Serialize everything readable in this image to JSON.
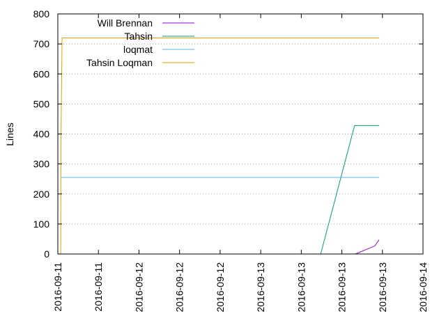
{
  "chart_data": {
    "type": "line",
    "title": "",
    "xlabel": "",
    "ylabel": "Lines",
    "ylim": [
      0,
      800
    ],
    "yticks": [
      0,
      100,
      200,
      300,
      400,
      500,
      600,
      700,
      800
    ],
    "xlim": [
      "2016-09-11T00:00",
      "2016-09-14T00:00"
    ],
    "xticks": [
      "2016-09-11",
      "2016-09-11",
      "2016-09-12",
      "2016-09-12",
      "2016-09-12",
      "2016-09-13",
      "2016-09-13",
      "2016-09-13",
      "2016-09-13",
      "2016-09-14"
    ],
    "grid": "horizontal dotted",
    "legend_position": "top-left",
    "series": [
      {
        "name": "Will Brennan",
        "color": "#9400d3",
        "points": [
          [
            "2016-09-12T02:00",
            0
          ],
          [
            "2016-09-13T10:40",
            0
          ],
          [
            "2016-09-13T14:30",
            27
          ],
          [
            "2016-09-13T15:20",
            47
          ]
        ]
      },
      {
        "name": "Tahsin",
        "color": "#009e73",
        "points": [
          [
            "2016-09-12T02:00",
            0
          ],
          [
            "2016-09-13T03:50",
            0
          ],
          [
            "2016-09-13T10:30",
            428
          ],
          [
            "2016-09-13T15:20",
            428
          ]
        ]
      },
      {
        "name": "loqmat",
        "color": "#56b4e9",
        "points": [
          [
            "2016-09-11T00:40",
            255
          ],
          [
            "2016-09-13T15:20",
            255
          ]
        ]
      },
      {
        "name": "Tahsin Loqman",
        "color": "#e69f00",
        "points": [
          [
            "2016-09-11T00:35",
            0
          ],
          [
            "2016-09-11T00:36",
            360
          ],
          [
            "2016-09-11T00:50",
            720
          ],
          [
            "2016-09-13T15:20",
            720
          ]
        ]
      }
    ]
  }
}
